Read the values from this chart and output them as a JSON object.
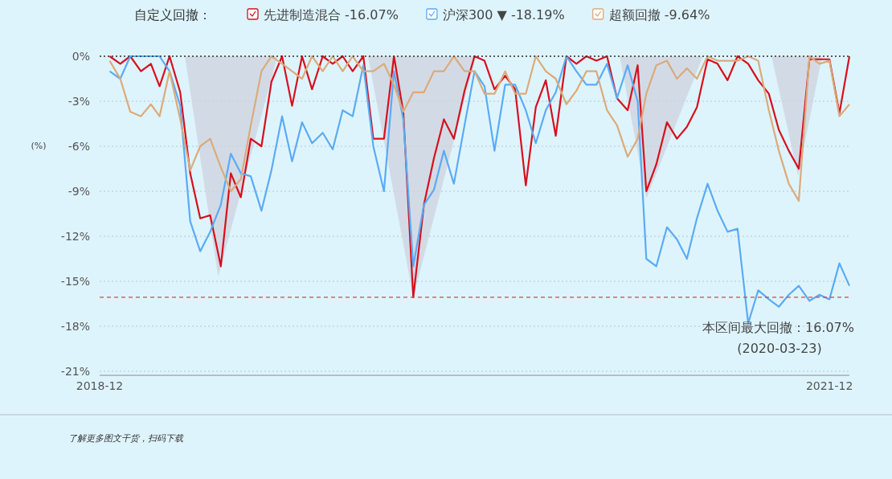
{
  "chart_data": {
    "type": "line",
    "legend_title": "自定义回撤：",
    "legend": "top",
    "ylabel": "(%)",
    "grid": "y",
    "xlim": [
      "2018-12-01",
      "2021-12-31"
    ],
    "xticks": [
      "2018-12",
      "2021-12"
    ],
    "ylim": [
      -21,
      0
    ],
    "yticks": [
      {
        "value": 0,
        "label": "0%"
      },
      {
        "value": -3,
        "label": "-3%"
      },
      {
        "value": -6,
        "label": "-6%"
      },
      {
        "value": -9,
        "label": "-9%"
      },
      {
        "value": -12,
        "label": "-12%"
      },
      {
        "value": -15,
        "label": "-15%"
      },
      {
        "value": -18,
        "label": "-18%"
      },
      {
        "value": -21,
        "label": "-21%"
      }
    ],
    "x": [
      "2018-12-16",
      "2019-01-01",
      "2019-01-16",
      "2019-02-01",
      "2019-02-16",
      "2019-03-01",
      "2019-03-16",
      "2019-04-01",
      "2019-04-16",
      "2019-05-01",
      "2019-05-16",
      "2019-06-01",
      "2019-06-16",
      "2019-07-01",
      "2019-07-16",
      "2019-08-01",
      "2019-08-16",
      "2019-09-01",
      "2019-09-16",
      "2019-10-01",
      "2019-10-16",
      "2019-11-01",
      "2019-11-16",
      "2019-12-01",
      "2019-12-16",
      "2020-01-01",
      "2020-01-16",
      "2020-02-01",
      "2020-02-16",
      "2020-03-01",
      "2020-03-16",
      "2020-04-01",
      "2020-04-16",
      "2020-05-01",
      "2020-05-16",
      "2020-06-01",
      "2020-06-16",
      "2020-07-01",
      "2020-07-16",
      "2020-08-01",
      "2020-08-16",
      "2020-09-01",
      "2020-09-16",
      "2020-10-01",
      "2020-10-16",
      "2020-11-01",
      "2020-11-16",
      "2020-12-01",
      "2020-12-16",
      "2021-01-01",
      "2021-01-16",
      "2021-02-01",
      "2021-02-16",
      "2021-03-01",
      "2021-03-16",
      "2021-04-01",
      "2021-04-16",
      "2021-05-01",
      "2021-05-16",
      "2021-06-01",
      "2021-06-16",
      "2021-07-01",
      "2021-07-16",
      "2021-08-01",
      "2021-08-16",
      "2021-09-01",
      "2021-09-16",
      "2021-10-01",
      "2021-10-16",
      "2021-11-01",
      "2021-11-16",
      "2021-12-01",
      "2021-12-16",
      "2021-12-31"
    ],
    "series": [
      {
        "type": "area",
        "color": "#cdd3dc",
        "x": [
          "2019-04-08",
          "2019-05-28",
          "2019-08-25",
          "2020-01-08",
          "2020-03-16",
          "2020-06-18",
          "2021-01-20",
          "2021-03-01",
          "2021-05-25",
          "2021-09-05",
          "2021-10-15",
          "2021-11-20"
        ],
        "values": [
          0,
          -14.7,
          0,
          0,
          -16.07,
          0,
          0,
          -9.5,
          0,
          0,
          -8,
          0
        ]
      },
      {
        "name": "先进制造混合 -16.07%",
        "color": "#d7101e",
        "values": [
          0,
          -0.5,
          0,
          -1,
          -0.5,
          -2,
          0,
          -2.4,
          -7.8,
          -10.8,
          -10.6,
          -14,
          -7.8,
          -9.4,
          -5.5,
          -6,
          -1.7,
          0,
          -3.3,
          0,
          -2.2,
          0,
          -0.5,
          0,
          -1,
          0,
          -5.5,
          -5.5,
          0,
          -3.7,
          -16.07,
          -9.9,
          -6.8,
          -4.2,
          -5.5,
          -2.3,
          0,
          -0.3,
          -2.2,
          -1.3,
          -2.2,
          -8.6,
          -3.4,
          -1.6,
          -5.3,
          0,
          -0.5,
          0,
          -0.3,
          0,
          -2.8,
          -3.6,
          -0.6,
          -9,
          -7.2,
          -4.4,
          -5.5,
          -4.7,
          -3.4,
          -0.2,
          -0.5,
          -1.6,
          0,
          -0.5,
          -1.6,
          -2.5,
          -4.9,
          -6.3,
          -7.5,
          -0.2,
          -0.2,
          -0.2,
          -3.8,
          0
        ]
      },
      {
        "name": "沪深300 ▼ -18.19%",
        "color": "#5aabf5",
        "values": [
          -1,
          -1.5,
          0,
          0,
          0,
          0,
          -1,
          -3.3,
          -11,
          -13,
          -11.7,
          -9.9,
          -6.5,
          -7.8,
          -8,
          -10.3,
          -7.6,
          -4,
          -7,
          -4.4,
          -5.8,
          -5.1,
          -6.2,
          -3.6,
          -4,
          -0.6,
          -6,
          -9,
          -1,
          -4.2,
          -14,
          -9.9,
          -8.9,
          -6.3,
          -8.5,
          -4.6,
          -1,
          -2,
          -6.3,
          -1.9,
          -1.9,
          -3.6,
          -5.8,
          -3.6,
          -2.4,
          0,
          -1,
          -1.9,
          -1.9,
          -0.5,
          -2.8,
          -0.6,
          -3,
          -13.5,
          -14,
          -11.4,
          -12.2,
          -13.5,
          -10.8,
          -8.5,
          -10.3,
          -11.7,
          -11.5,
          -17.8,
          -15.6,
          -16.2,
          -16.7,
          -15.9,
          -15.3,
          -16.3,
          -15.9,
          -16.2,
          -13.8,
          -15.3
        ]
      },
      {
        "name": "超额回撤 -9.64%",
        "color": "#dcaa7a",
        "values": [
          -0.3,
          -1.5,
          -3.7,
          -4,
          -3.2,
          -4,
          -1,
          -4.2,
          -7.6,
          -6,
          -5.5,
          -7.4,
          -9,
          -8.2,
          -4.6,
          -1,
          0,
          -0.5,
          -1,
          -1.5,
          0,
          -1,
          0,
          -1,
          0,
          -1,
          -1,
          -0.5,
          -1.9,
          -3.7,
          -2.4,
          -2.4,
          -1,
          -1,
          0,
          -1,
          -1,
          -2.5,
          -2.5,
          -1,
          -2.5,
          -2.5,
          0,
          -1,
          -1.5,
          -3.2,
          -2.3,
          -1,
          -1,
          -3.6,
          -4.6,
          -6.7,
          -5.5,
          -2.5,
          -0.6,
          -0.3,
          -1.5,
          -0.8,
          -1.5,
          0,
          -0.3,
          -0.3,
          -0.3,
          0,
          -0.3,
          -3.6,
          -6.3,
          -8.5,
          -9.64,
          0,
          -0.5,
          -0.3,
          -4,
          -3.2
        ]
      }
    ],
    "ref_lines": [
      {
        "axis": "y",
        "value": 0,
        "color": "#333333",
        "line_style": "dotted"
      },
      {
        "axis": "y",
        "value": -16.07,
        "color": "#d9404f",
        "line_style": "dashed"
      }
    ],
    "annotations": [
      "本区间最大回撤：16.07%",
      "(2020-03-23)",
      "了解更多图文干货，扫码下载"
    ]
  }
}
